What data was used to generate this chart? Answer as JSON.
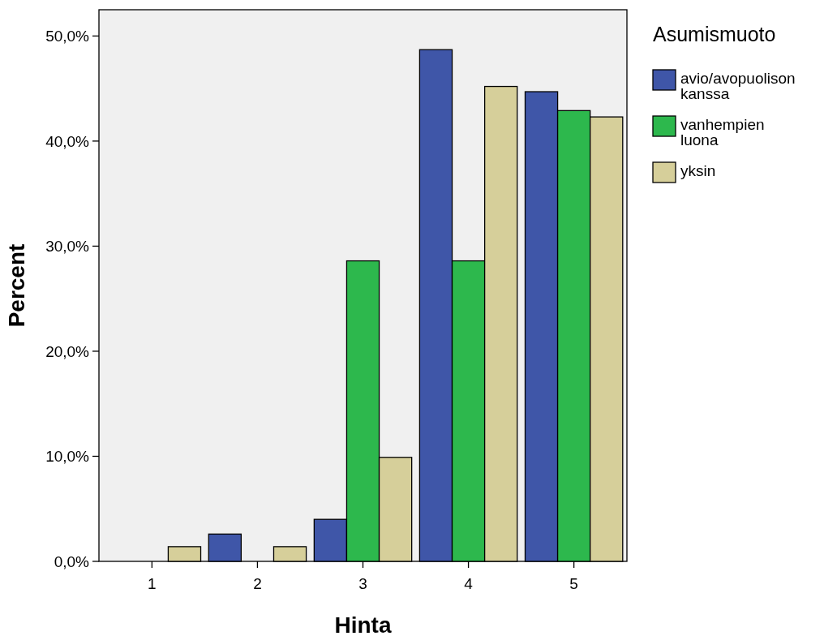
{
  "chart_data": {
    "type": "bar",
    "xlabel": "Hinta",
    "ylabel": "Percent",
    "legend_title": "Asumismuoto",
    "legend": "right",
    "categories": [
      "1",
      "2",
      "3",
      "4",
      "5"
    ],
    "series": [
      {
        "name": "avio/avopuolison kanssa",
        "color": "#3f56a8",
        "values": [
          0,
          2.6,
          4.0,
          48.7,
          44.7
        ]
      },
      {
        "name": "vanhempien luona",
        "color": "#2db84d",
        "values": [
          0,
          0,
          28.6,
          28.6,
          42.9
        ]
      },
      {
        "name": "yksin",
        "color": "#d6cf9a",
        "values": [
          1.4,
          1.4,
          9.9,
          45.2,
          42.3
        ]
      }
    ],
    "ylim": [
      0,
      52.5
    ],
    "yticks": [
      {
        "value": 0,
        "label": "0,0%"
      },
      {
        "value": 10,
        "label": "10,0%"
      },
      {
        "value": 20,
        "label": "20,0%"
      },
      {
        "value": 30,
        "label": "30,0%"
      },
      {
        "value": 40,
        "label": "40,0%"
      },
      {
        "value": 50,
        "label": "50,0%"
      }
    ]
  }
}
